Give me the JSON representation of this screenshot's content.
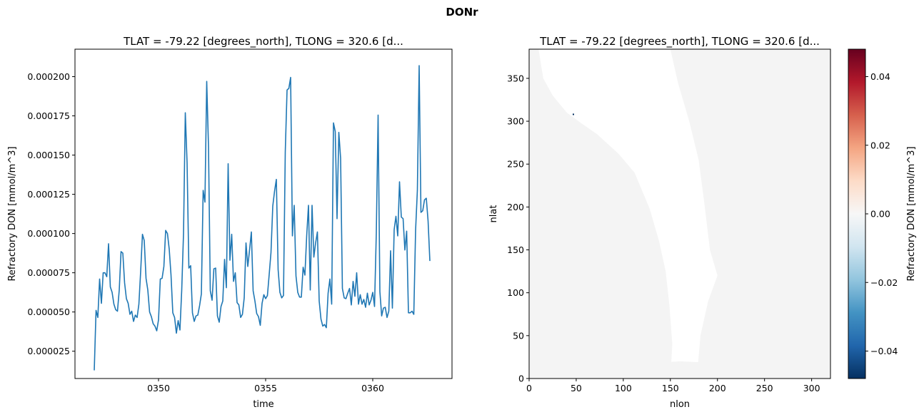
{
  "figure": {
    "suptitle": "DONr"
  },
  "chart_data": [
    {
      "type": "line",
      "title": "TLAT = -79.22 [degrees_north], TLONG = 320.6 [d...",
      "xlabel": "time",
      "ylabel": "Refractory DON [mmol/m^3]",
      "xlim": [
        346.1,
        363.7
      ],
      "ylim": [
        7.6e-06,
        0.0002175
      ],
      "xticks": [
        350,
        355,
        360
      ],
      "xtick_labels": [
        "0350",
        "0355",
        "0360"
      ],
      "yticks": [
        2.5e-05,
        5e-05,
        7.5e-05,
        0.0001,
        0.000125,
        0.00015,
        0.000175,
        0.0002
      ],
      "ytick_labels": [
        "0.000025",
        "0.000050",
        "0.000075",
        "0.000100",
        "0.000125",
        "0.000150",
        "0.000175",
        "0.000200"
      ],
      "line_color": "#1f77b4",
      "series": [
        {
          "x_start": 347.0,
          "x_step": 0.0833333,
          "values": [
            1.28e-05,
            5.1e-05,
            4.65e-05,
            7.1e-05,
            5.55e-05,
            7.5e-05,
            7.5e-05,
            7.25e-05,
            9.35e-05,
            6.6e-05,
            6.25e-05,
            5.5e-05,
            5.15e-05,
            5.05e-05,
            6.4e-05,
            8.85e-05,
            8.75e-05,
            6.85e-05,
            5.85e-05,
            5.55e-05,
            4.85e-05,
            5.05e-05,
            4.4e-05,
            4.8e-05,
            4.65e-05,
            5.5e-05,
            7.6e-05,
            9.95e-05,
            9.55e-05,
            7.15e-05,
            6.4e-05,
            5e-05,
            4.7e-05,
            4.25e-05,
            4.1e-05,
            3.8e-05,
            4.5e-05,
            7.1e-05,
            7.15e-05,
            7.9e-05,
            0.000102,
            0.0001,
            9e-05,
            7.35e-05,
            4.95e-05,
            4.65e-05,
            3.65e-05,
            4.45e-05,
            3.85e-05,
            6.4e-05,
            0.0001,
            0.000177,
            0.000145,
            7.8e-05,
            7.95e-05,
            4.95e-05,
            4.4e-05,
            4.75e-05,
            4.8e-05,
            5.4e-05,
            6.15e-05,
            0.0001275,
            0.00012,
            0.000197,
            0.000155,
            6.35e-05,
            5.75e-05,
            7.75e-05,
            7.8e-05,
            4.75e-05,
            4.35e-05,
            5.35e-05,
            5.7e-05,
            8.35e-05,
            6.55e-05,
            0.0001445,
            8.3e-05,
            9.95e-05,
            6.95e-05,
            7.5e-05,
            5.6e-05,
            5.45e-05,
            4.65e-05,
            4.85e-05,
            5.9e-05,
            9.4e-05,
            7.9e-05,
            8.95e-05,
            0.000101,
            6.35e-05,
            5.7e-05,
            4.9e-05,
            4.7e-05,
            4.15e-05,
            5.55e-05,
            6.1e-05,
            5.85e-05,
            6.05e-05,
            7.4e-05,
            8.8e-05,
            0.0001175,
            0.000127,
            0.0001345,
            7.7e-05,
            6.25e-05,
            5.9e-05,
            6.05e-05,
            0.000152,
            0.0001915,
            0.0001925,
            0.0001995,
            9.85e-05,
            0.000118,
            7.3e-05,
            6.25e-05,
            5.95e-05,
            5.95e-05,
            7.85e-05,
            7.35e-05,
            9.85e-05,
            0.000118,
            6.4e-05,
            0.000118,
            8.5e-05,
            9.4e-05,
            0.000101,
            5.7e-05,
            4.55e-05,
            4.1e-05,
            4.2e-05,
            4e-05,
            6.2e-05,
            7.1e-05,
            5.5e-05,
            0.0001705,
            0.000165,
            0.0001095,
            0.0001645,
            0.000148,
            6.5e-05,
            5.9e-05,
            5.85e-05,
            6.2e-05,
            6.5e-05,
            5.45e-05,
            6.95e-05,
            6e-05,
            7.5e-05,
            5.5e-05,
            6.1e-05,
            5.5e-05,
            5.8e-05,
            5.3e-05,
            6.2e-05,
            5.45e-05,
            5.75e-05,
            6.25e-05,
            5.35e-05,
            0.0001005,
            0.0001755,
            6.3e-05,
            4.75e-05,
            5.25e-05,
            5.3e-05,
            4.65e-05,
            5.05e-05,
            8.9e-05,
            5.25e-05,
            0.0001025,
            0.000111,
            9.85e-05,
            0.000133,
            0.0001105,
            0.0001095,
            8.95e-05,
            0.0001015,
            4.95e-05,
            4.95e-05,
            5.05e-05,
            4.85e-05,
            0.000102,
            0.0001275,
            0.000207,
            0.0001135,
            0.0001145,
            0.0001215,
            0.0001225,
            0.000108,
            8.25e-05
          ]
        }
      ]
    },
    {
      "type": "heatmap",
      "title": "TLAT = -79.22 [degrees_north], TLONG = 320.6 [d...",
      "xlabel": "nlon",
      "ylabel": "nlat",
      "xlim": [
        0,
        320
      ],
      "ylim": [
        0,
        384
      ],
      "xticks": [
        0,
        50,
        100,
        150,
        200,
        250,
        300
      ],
      "yticks": [
        0,
        50,
        100,
        150,
        200,
        250,
        300,
        350
      ],
      "fill_value": 0.0,
      "field_color": "#f4f4f4",
      "land_color": "#ffffff",
      "marked_cell": {
        "nlon": 47,
        "nlat": 308,
        "color": "#053061"
      },
      "colorbar": {
        "label": "Refractory DON [mmol/m^3]",
        "vmin": -0.048,
        "vmax": 0.048,
        "ticks": [
          -0.04,
          -0.02,
          0.0,
          0.02,
          0.04
        ],
        "tick_labels": [
          "−0.04",
          "−0.02",
          "0.00",
          "0.02",
          "0.04"
        ],
        "colormap": "RdBu_r",
        "stops": [
          "#053061",
          "#2166ac",
          "#4393c3",
          "#92c5de",
          "#d1e5f0",
          "#f7f7f7",
          "#fddbc7",
          "#f4a582",
          "#d6604d",
          "#b2182b",
          "#67001f"
        ]
      }
    }
  ]
}
